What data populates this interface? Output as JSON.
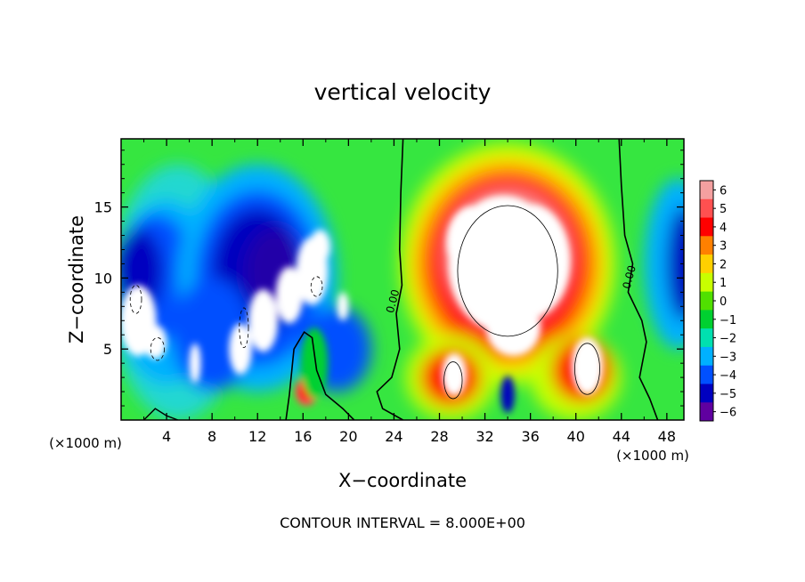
{
  "chart_data": {
    "type": "heatmap",
    "title": "vertical velocity",
    "xlabel": "X−coordinate",
    "ylabel": "Z−coordinate",
    "x_unit_left": "(×1000 m)",
    "x_unit_right": "(×1000 m)",
    "xlim": [
      0,
      49.5
    ],
    "ylim": [
      0,
      19.8
    ],
    "x_ticks": [
      4,
      8,
      12,
      16,
      20,
      24,
      28,
      32,
      36,
      40,
      44,
      48
    ],
    "y_ticks": [
      5,
      10,
      15
    ],
    "x_tick_labels": [
      "4",
      "8",
      "12",
      "16",
      "20",
      "24",
      "28",
      "32",
      "36",
      "40",
      "44",
      "48"
    ],
    "y_tick_labels": [
      "5",
      "10",
      "15"
    ],
    "colorbar": {
      "levels": [
        6,
        5,
        4,
        3,
        2,
        1,
        0,
        -1,
        -2,
        -3,
        -4,
        -5,
        -6
      ],
      "labels": [
        "6",
        "5",
        "4",
        "3",
        "2",
        "1",
        "0",
        "−1",
        "−2",
        "−3",
        "−4",
        "−5",
        "−6"
      ],
      "colors": [
        "#f4a0a0",
        "#ff5050",
        "#ff0000",
        "#ff8000",
        "#ffd000",
        "#c8ff00",
        "#50e000",
        "#00d030",
        "#00e0b0",
        "#00b0ff",
        "#0050ff",
        "#0000c0",
        "#6000a0"
      ]
    },
    "contour_labels": [
      {
        "text": "0.00",
        "x": 24.2,
        "y": 8.3
      },
      {
        "text": "0.00",
        "x": 45.0,
        "y": 10.0
      }
    ],
    "contour_interval_text": "CONTOUR INTERVAL = 8.000E+00",
    "features": [
      {
        "type": "updraft",
        "x": 34,
        "z": 10.5,
        "w": 12
      },
      {
        "type": "downdraft",
        "x": 11,
        "z": 9,
        "w": -11
      },
      {
        "type": "downdraft",
        "x": 2.5,
        "z": 8,
        "w": -9
      }
    ]
  }
}
